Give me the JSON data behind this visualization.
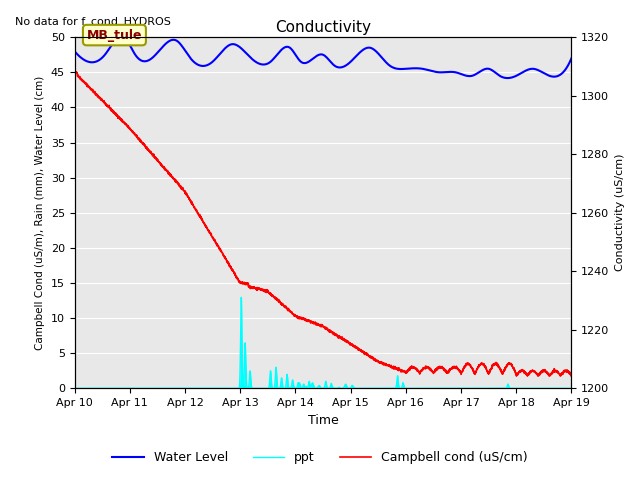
{
  "title": "Conductivity",
  "top_left_text": "No data for f_cond_HYDROS",
  "xlabel": "Time",
  "ylabel_left": "Campbell Cond (uS/m), Rain (mm), Water Level (cm)",
  "ylabel_right": "Conductivity (uS/cm)",
  "ylim_left": [
    0,
    50
  ],
  "ylim_right": [
    1200,
    1320
  ],
  "xlim": [
    0,
    9
  ],
  "xtick_labels": [
    "Apr 10",
    "Apr 11",
    "Apr 12",
    "Apr 13",
    "Apr 14",
    "Apr 15",
    "Apr 16",
    "Apr 17",
    "Apr 18",
    "Apr 19"
  ],
  "yticks_left": [
    0,
    5,
    10,
    15,
    20,
    25,
    30,
    35,
    40,
    45,
    50
  ],
  "yticks_right": [
    1200,
    1220,
    1240,
    1260,
    1280,
    1300,
    1320
  ],
  "bg_color": "#e8e8e8",
  "label_box_text": "MB_tule",
  "legend_entries": [
    "Water Level",
    "ppt",
    "Campbell cond (uS/cm)"
  ],
  "water_level_peaks_x": [
    0.0,
    0.25,
    0.55,
    0.9,
    1.1,
    1.4,
    1.85,
    2.1,
    2.5,
    2.85,
    3.2,
    3.55,
    3.9,
    4.1,
    4.5,
    4.7,
    5.0,
    5.35,
    5.7,
    6.0,
    6.3,
    6.6,
    6.9,
    7.2,
    7.5,
    7.7,
    8.0,
    8.3,
    8.6,
    8.9,
    9.0
  ],
  "water_level_peaks_y": [
    48.0,
    46.5,
    47.5,
    50.0,
    47.5,
    47.0,
    49.5,
    47.0,
    46.5,
    49.0,
    47.0,
    46.5,
    48.5,
    46.5,
    47.5,
    46.0,
    46.5,
    48.5,
    46.0,
    45.5,
    45.5,
    45.0,
    45.0,
    44.5,
    45.5,
    44.5,
    44.5,
    45.5,
    44.5,
    45.5,
    47.0
  ]
}
